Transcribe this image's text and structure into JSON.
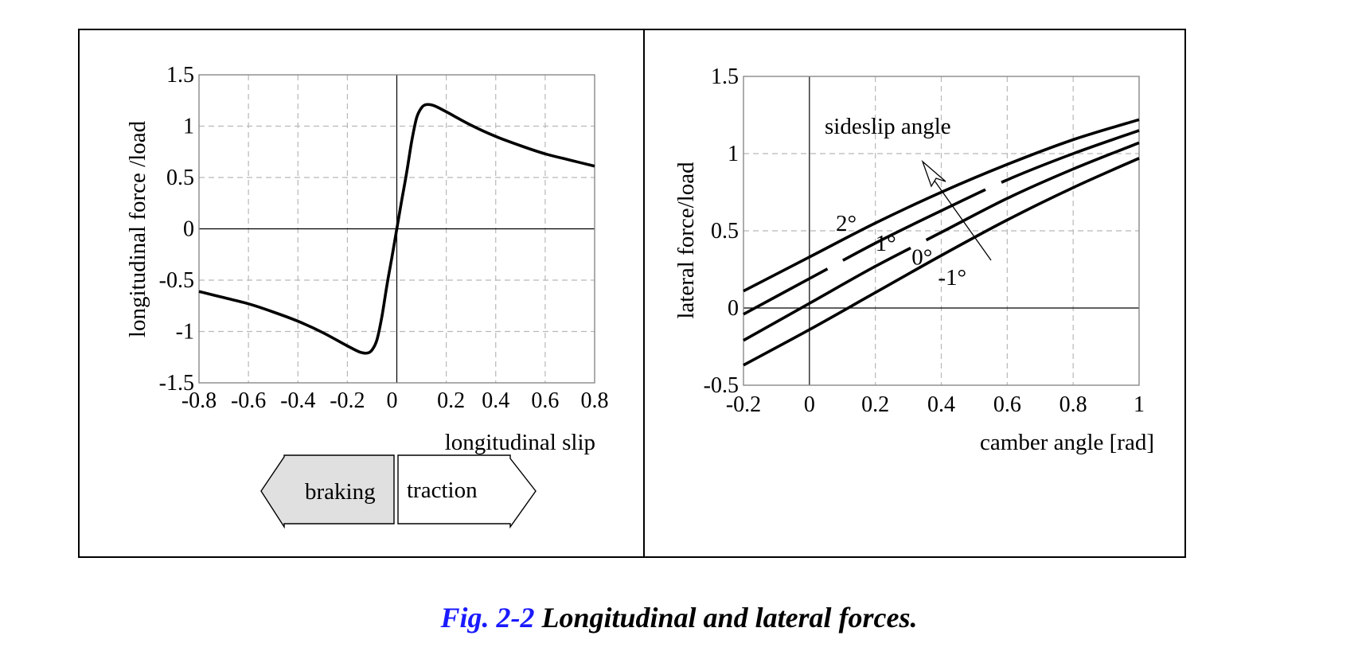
{
  "caption": {
    "number": "Fig. 2-2",
    "title": "Longitudinal and lateral forces."
  },
  "colors": {
    "caption_number": "#1a1aff",
    "braking_fill": "#e0e0e0"
  },
  "arrows": {
    "braking": "braking",
    "traction": "traction"
  },
  "chart_data": [
    {
      "type": "line",
      "xlabel": "longitudinal slip",
      "ylabel": "longitudinal force /load",
      "xlim": [
        -0.8,
        0.8
      ],
      "ylim": [
        -1.5,
        1.5
      ],
      "xticks": [
        "-0.8",
        "-0.6",
        "-0.4",
        "-0.2",
        "0",
        "0.2",
        "0.4",
        "0.6",
        "0.8"
      ],
      "yticks": [
        "1.5",
        "1",
        "0.5",
        "0",
        "-0.5",
        "-1",
        "-1.5"
      ],
      "grid": true,
      "series": [
        {
          "name": "longitudinal force",
          "x": [
            -0.8,
            -0.7,
            -0.6,
            -0.5,
            -0.4,
            -0.3,
            -0.2,
            -0.15,
            -0.12,
            -0.1,
            -0.08,
            -0.06,
            -0.04,
            -0.02,
            0,
            0.02,
            0.04,
            0.06,
            0.08,
            0.1,
            0.12,
            0.15,
            0.2,
            0.3,
            0.4,
            0.5,
            0.6,
            0.7,
            0.8
          ],
          "y": [
            -0.61,
            -0.67,
            -0.73,
            -0.81,
            -0.9,
            -1.01,
            -1.14,
            -1.2,
            -1.21,
            -1.18,
            -1.08,
            -0.85,
            -0.55,
            -0.28,
            0,
            0.28,
            0.55,
            0.85,
            1.08,
            1.18,
            1.21,
            1.2,
            1.14,
            1.01,
            0.9,
            0.81,
            0.73,
            0.67,
            0.61
          ]
        }
      ]
    },
    {
      "type": "line",
      "xlabel": "camber angle [rad]",
      "ylabel": "lateral force/load",
      "xlim": [
        -0.2,
        1.0
      ],
      "ylim": [
        -0.5,
        1.5
      ],
      "xticks": [
        "-0.2",
        "0",
        "0.2",
        "0.4",
        "0.6",
        "0.8",
        "1"
      ],
      "yticks": [
        "1.5",
        "1",
        "0.5",
        "0",
        "-0.5"
      ],
      "grid": true,
      "annotation": "sideslip angle",
      "series": [
        {
          "name": "2°",
          "x": [
            -0.2,
            0,
            0.2,
            0.4,
            0.6,
            0.8,
            1.0
          ],
          "y": [
            0.11,
            0.33,
            0.55,
            0.75,
            0.93,
            1.09,
            1.22
          ]
        },
        {
          "name": "1°",
          "x": [
            -0.2,
            0,
            0.2,
            0.4,
            0.6,
            0.8,
            1.0
          ],
          "y": [
            -0.04,
            0.19,
            0.42,
            0.63,
            0.83,
            1.0,
            1.15
          ]
        },
        {
          "name": "0°",
          "x": [
            -0.2,
            0,
            0.2,
            0.4,
            0.6,
            0.8,
            1.0
          ],
          "y": [
            -0.21,
            0.03,
            0.27,
            0.49,
            0.71,
            0.9,
            1.07
          ]
        },
        {
          "name": "-1°",
          "x": [
            -0.2,
            0,
            0.2,
            0.4,
            0.6,
            0.8,
            1.0
          ],
          "y": [
            -0.37,
            -0.14,
            0.1,
            0.34,
            0.57,
            0.78,
            0.97
          ]
        }
      ]
    }
  ]
}
